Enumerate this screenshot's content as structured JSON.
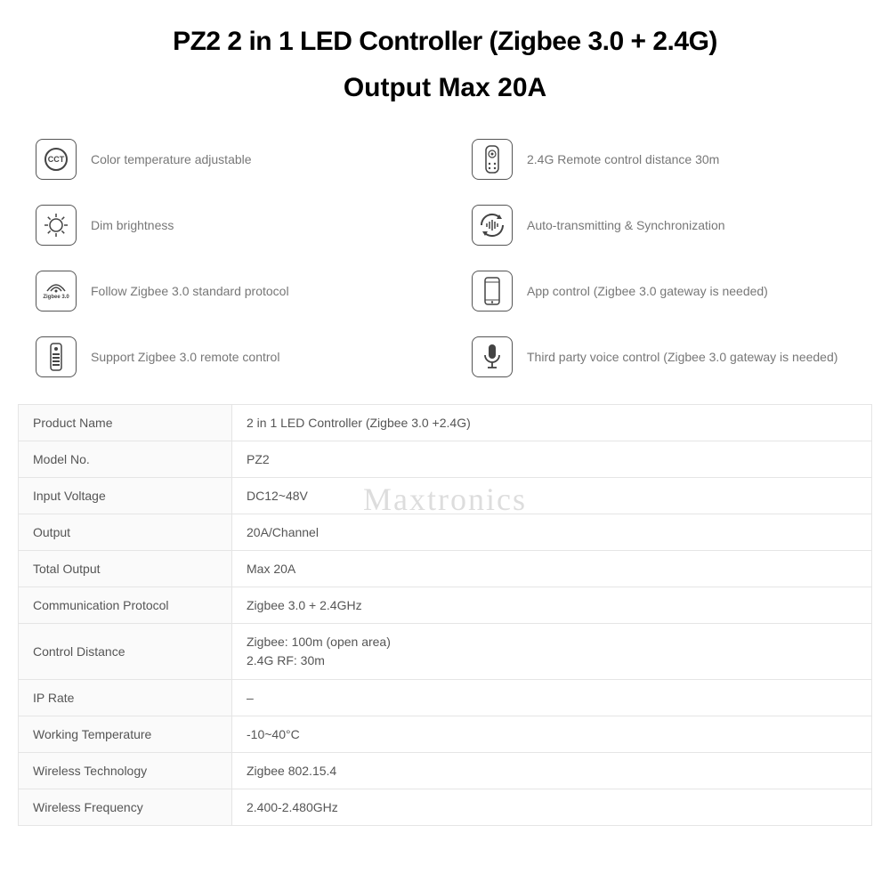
{
  "title": {
    "line1": "PZ2 2 in 1 LED Controller (Zigbee 3.0 + 2.4G)",
    "line2": "Output Max 20A"
  },
  "features_left": [
    {
      "icon": "cct",
      "label": "Color temperature adjustable"
    },
    {
      "icon": "sun",
      "label": "Dim brightness"
    },
    {
      "icon": "zigbee",
      "label": "Follow Zigbee 3.0 standard protocol"
    },
    {
      "icon": "remote",
      "label": "Support Zigbee 3.0 remote control"
    }
  ],
  "features_right": [
    {
      "icon": "remote2",
      "label": "2.4G Remote control distance 30m"
    },
    {
      "icon": "sync",
      "label": "Auto-transmitting & Synchronization"
    },
    {
      "icon": "phone",
      "label": "App control (Zigbee 3.0 gateway is needed)"
    },
    {
      "icon": "mic",
      "label": "Third party voice control (Zigbee 3.0 gateway is needed)"
    }
  ],
  "specs": [
    {
      "k": "Product Name",
      "v": "2 in 1 LED Controller (Zigbee 3.0 +2.4G)"
    },
    {
      "k": "Model No.",
      "v": "PZ2"
    },
    {
      "k": "Input Voltage",
      "v": "DC12~48V"
    },
    {
      "k": "Output",
      "v": "20A/Channel"
    },
    {
      "k": "Total Output",
      "v": "Max 20A"
    },
    {
      "k": "Communication Protocol",
      "v": "Zigbee 3.0 + 2.4GHz"
    },
    {
      "k": "Control Distance",
      "v": "Zigbee: 100m (open area)\n2.4G RF: 30m"
    },
    {
      "k": "IP Rate",
      "v": "–"
    },
    {
      "k": "Working Temperature",
      "v": "-10~40°C"
    },
    {
      "k": "Wireless Technology",
      "v": "Zigbee 802.15.4"
    },
    {
      "k": "Wireless Frequency",
      "v": "2.400-2.480GHz"
    }
  ],
  "watermark": "Maxtronics",
  "cct_text": "CCT",
  "zigbee_text": "Zigbee 3.0",
  "colors": {
    "text_primary": "#000000",
    "text_secondary": "#777777",
    "text_spec": "#555555",
    "border_icon": "#555555",
    "border_table": "#e5e5e5",
    "bg_label_col": "#fafafa",
    "watermark": "rgba(120,120,120,0.25)"
  },
  "layout": {
    "title_fontsize": 30,
    "feature_fontsize": 14,
    "spec_fontsize": 14,
    "icon_box": 46,
    "label_col_width": 240
  }
}
